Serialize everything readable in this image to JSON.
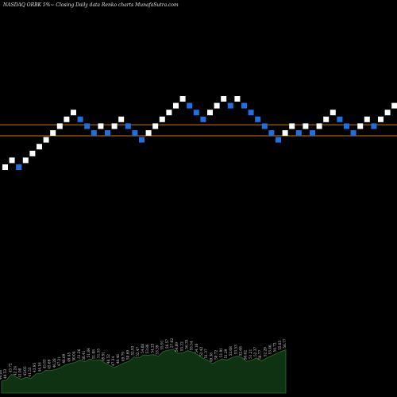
{
  "header": {
    "title": "NASDAQ ORBK 5%~  Closing Daily data  Renko  charts MunafaSutra.com"
  },
  "colors": {
    "background": "#000000",
    "up_brick": "#ffffff",
    "down_brick": "#1e6fe0",
    "level_line": "#c8781e",
    "volume_fill": "#0f3312",
    "volume_stroke": "#2f6a30",
    "label_text": "#d8d8d8"
  },
  "chart_data": {
    "type": "renko",
    "bricks": [
      {
        "level": 0,
        "dir": "up"
      },
      {
        "level": 1,
        "dir": "up"
      },
      {
        "level": 0,
        "dir": "down"
      },
      {
        "level": 1,
        "dir": "up"
      },
      {
        "level": 2,
        "dir": "up"
      },
      {
        "level": 3,
        "dir": "up"
      },
      {
        "level": 4,
        "dir": "up"
      },
      {
        "level": 5,
        "dir": "up"
      },
      {
        "level": 6,
        "dir": "up"
      },
      {
        "level": 7,
        "dir": "up"
      },
      {
        "level": 8,
        "dir": "up"
      },
      {
        "level": 7,
        "dir": "down"
      },
      {
        "level": 6,
        "dir": "down"
      },
      {
        "level": 5,
        "dir": "down"
      },
      {
        "level": 6,
        "dir": "up"
      },
      {
        "level": 5,
        "dir": "down"
      },
      {
        "level": 6,
        "dir": "up"
      },
      {
        "level": 7,
        "dir": "up"
      },
      {
        "level": 6,
        "dir": "down"
      },
      {
        "level": 5,
        "dir": "down"
      },
      {
        "level": 4,
        "dir": "down"
      },
      {
        "level": 5,
        "dir": "up"
      },
      {
        "level": 6,
        "dir": "up"
      },
      {
        "level": 7,
        "dir": "up"
      },
      {
        "level": 8,
        "dir": "up"
      },
      {
        "level": 9,
        "dir": "up"
      },
      {
        "level": 10,
        "dir": "up"
      },
      {
        "level": 9,
        "dir": "down"
      },
      {
        "level": 8,
        "dir": "down"
      },
      {
        "level": 7,
        "dir": "down"
      },
      {
        "level": 8,
        "dir": "up"
      },
      {
        "level": 9,
        "dir": "up"
      },
      {
        "level": 10,
        "dir": "up"
      },
      {
        "level": 9,
        "dir": "down"
      },
      {
        "level": 10,
        "dir": "up"
      },
      {
        "level": 9,
        "dir": "down"
      },
      {
        "level": 8,
        "dir": "down"
      },
      {
        "level": 7,
        "dir": "down"
      },
      {
        "level": 6,
        "dir": "down"
      },
      {
        "level": 5,
        "dir": "down"
      },
      {
        "level": 4,
        "dir": "down"
      },
      {
        "level": 5,
        "dir": "up"
      },
      {
        "level": 6,
        "dir": "up"
      },
      {
        "level": 5,
        "dir": "down"
      },
      {
        "level": 6,
        "dir": "up"
      },
      {
        "level": 5,
        "dir": "down"
      },
      {
        "level": 6,
        "dir": "up"
      },
      {
        "level": 7,
        "dir": "up"
      },
      {
        "level": 8,
        "dir": "up"
      },
      {
        "level": 7,
        "dir": "down"
      },
      {
        "level": 6,
        "dir": "down"
      },
      {
        "level": 5,
        "dir": "down"
      },
      {
        "level": 6,
        "dir": "up"
      },
      {
        "level": 7,
        "dir": "up"
      },
      {
        "level": 6,
        "dir": "down"
      },
      {
        "level": 7,
        "dir": "up"
      },
      {
        "level": 8,
        "dir": "up"
      },
      {
        "level": 9,
        "dir": "up"
      },
      {
        "level": 10,
        "dir": "up"
      }
    ],
    "reference_lines": [
      {
        "level": 6.2
      },
      {
        "level": 4.6
      }
    ],
    "volume_labels": [
      "40.08",
      "40.53",
      "43.72",
      "42.24",
      "41.08",
      "42.05",
      "41.53",
      "43.95",
      "44.16",
      "45.83",
      "45.69",
      "46.28",
      "47.21",
      "48.69",
      "49.45",
      "50.04",
      "51.26",
      "50.41",
      "51.84",
      "51.08",
      "51.55",
      "49.91",
      "48.52",
      "47.34",
      "48.48",
      "49.79",
      "50.69",
      "52.93",
      "52.47",
      "54.08",
      "53.86",
      "54.23",
      "53.39",
      "55.91",
      "56.57",
      "57.02",
      "54.89",
      "55.22",
      "56.35",
      "55.54",
      "54.16",
      "52.42",
      "51.37",
      "49.38",
      "50.72",
      "51.91",
      "51.29",
      "52.68",
      "53.53",
      "52.68",
      "50.62",
      "51.21",
      "52.37",
      "50.77",
      "52.29",
      "53.46",
      "54.72",
      "55.85",
      "56.77"
    ]
  }
}
